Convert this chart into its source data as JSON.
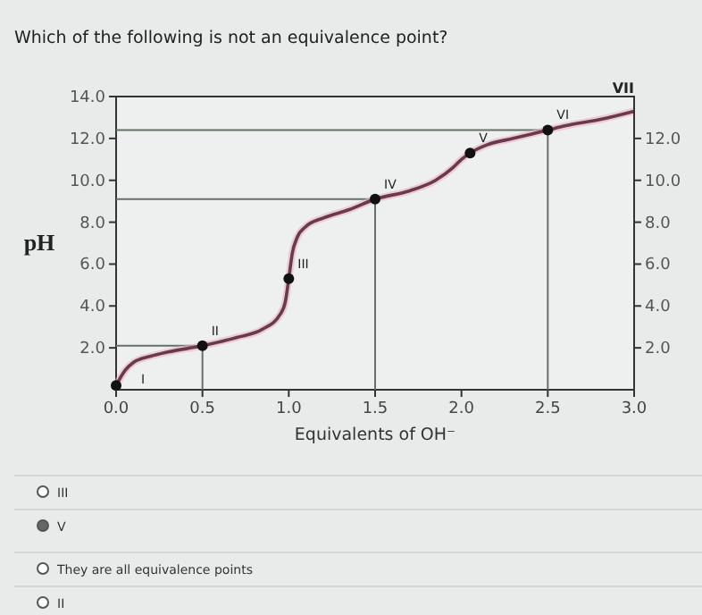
{
  "chart_data": {
    "type": "line",
    "title": "Which of the following is not an equivalence point?",
    "xlabel": "Equivalents of OH⁻",
    "ylabel": "pH",
    "xlim": [
      0,
      3
    ],
    "xticks": [
      {
        "value": 0,
        "label": "0.0"
      },
      {
        "value": 0.5,
        "label": "0.5"
      },
      {
        "value": 1,
        "label": "1.0"
      },
      {
        "value": 1.5,
        "label": "1.5"
      },
      {
        "value": 2,
        "label": "2.0"
      },
      {
        "value": 2.5,
        "label": "2.5"
      },
      {
        "value": 3,
        "label": "3.0"
      }
    ],
    "ylim": [
      0,
      14
    ],
    "yticks": [
      {
        "value": 2,
        "label": "2.0"
      },
      {
        "value": 4,
        "label": "4.0"
      },
      {
        "value": 6,
        "label": "6.0"
      },
      {
        "value": 8,
        "label": "8.0"
      },
      {
        "value": 10,
        "label": "10.0"
      },
      {
        "value": 12,
        "label": "12.0"
      },
      {
        "value": 14,
        "label": "14.0"
      }
    ],
    "y2lim": [
      0,
      14
    ],
    "y2ticks": [
      {
        "value": 2,
        "label": "2.0"
      },
      {
        "value": 4,
        "label": "4.0"
      },
      {
        "value": 6,
        "label": "6.0"
      },
      {
        "value": 8,
        "label": "8.0"
      },
      {
        "value": 10,
        "label": "10.0"
      },
      {
        "value": 12,
        "label": "12.0"
      }
    ],
    "grid": false,
    "series": [
      {
        "color": "#6b3a4a",
        "marker": "none",
        "x": [
          0,
          0.05,
          0.1,
          0.2,
          0.3,
          0.5,
          0.7,
          0.85,
          0.95,
          0.98,
          1.0,
          1.02,
          1.05,
          1.1,
          1.2,
          1.35,
          1.5,
          1.7,
          1.85,
          1.95,
          2.0,
          2.05,
          2.15,
          2.3,
          2.5,
          2.6,
          2.8,
          3.0
        ],
        "values": [
          0.2,
          0.9,
          1.3,
          1.6,
          1.8,
          2.1,
          2.5,
          2.9,
          3.6,
          4.2,
          5.3,
          6.5,
          7.3,
          7.8,
          8.2,
          8.6,
          9.1,
          9.5,
          10.0,
          10.6,
          11.0,
          11.3,
          11.7,
          12.0,
          12.4,
          12.6,
          12.9,
          13.3
        ]
      },
      {
        "type": "scatter",
        "color": "#111111",
        "marker": "circle",
        "x": [
          0,
          0.5,
          1.0,
          1.5,
          2.05,
          2.5
        ],
        "values": [
          0.2,
          2.1,
          5.3,
          9.1,
          11.3,
          12.4
        ]
      }
    ],
    "ref_lines": [
      {
        "axis": "y",
        "value": 2.1,
        "color": "#667066"
      },
      {
        "axis": "y",
        "value": 9.1,
        "color": "#667066"
      },
      {
        "axis": "y",
        "value": 12.4,
        "color": "#667066"
      },
      {
        "axis": "x",
        "value": 0.5,
        "color": "#667066"
      },
      {
        "axis": "x",
        "value": 1.5,
        "color": "#667066"
      },
      {
        "axis": "x",
        "value": 2.5,
        "color": "#667066"
      }
    ],
    "annotations": [
      {
        "text": "I",
        "x": 0,
        "y": 0.2
      },
      {
        "text": "II",
        "x": 0.5,
        "y": 2.1
      },
      {
        "text": "III",
        "x": 1.0,
        "y": 5.3
      },
      {
        "text": "IV",
        "x": 1.5,
        "y": 9.1
      },
      {
        "text": "V",
        "x": 2.05,
        "y": 11.3
      },
      {
        "text": "VI",
        "x": 2.5,
        "y": 12.4
      },
      "VII",
      "III",
      "V",
      "They are all equivalence points",
      "II"
    ]
  }
}
